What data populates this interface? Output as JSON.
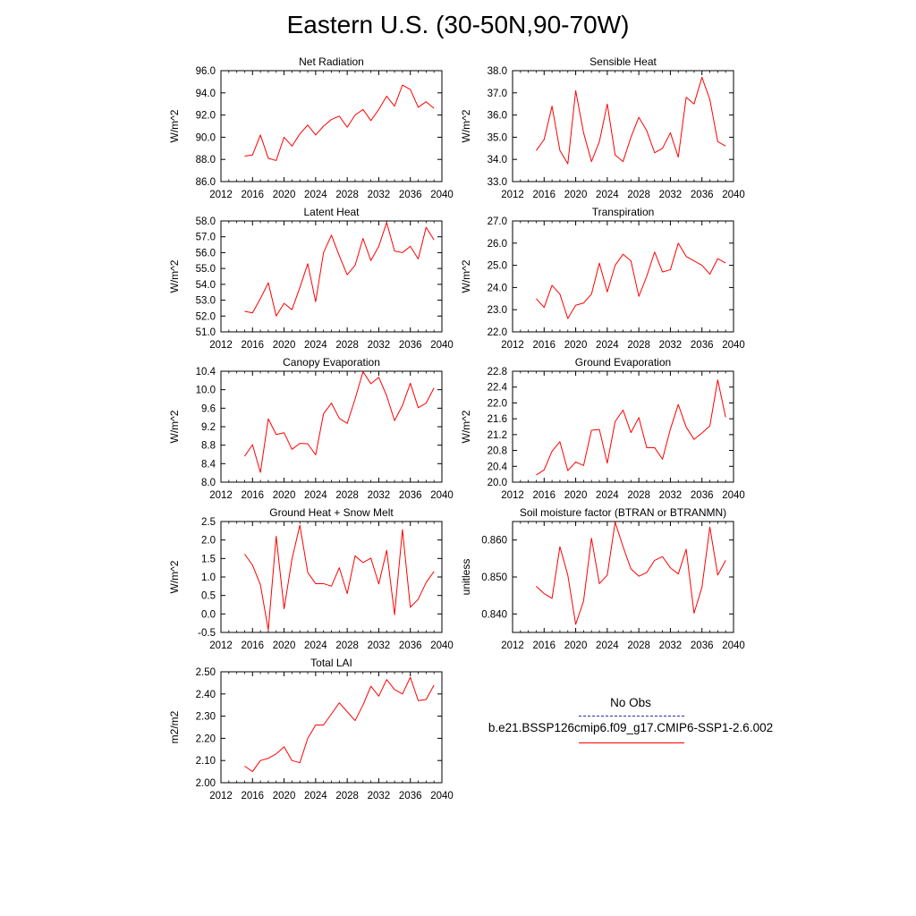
{
  "title": "Eastern U.S. (30-50N,90-70W)",
  "legend": {
    "obs_label": "No Obs",
    "obs_color": "#2c2c9c",
    "model_label": "b.e21.BSSP126cmip6.f09_g17.CMIP6-SSP1-2.6.002",
    "model_color": "#ff0000"
  },
  "chart_data": [
    {
      "type": "line",
      "title": "Net Radiation",
      "ylabel": "W/m^2",
      "xlim": [
        2012,
        2040
      ],
      "xticks": [
        2012,
        2016,
        2020,
        2024,
        2028,
        2032,
        2036,
        2040
      ],
      "ylim": [
        86.0,
        96.0
      ],
      "yticks": [
        86.0,
        88.0,
        90.0,
        92.0,
        94.0,
        96.0
      ],
      "ydecimals": 1,
      "x": [
        2015,
        2016,
        2017,
        2018,
        2019,
        2020,
        2021,
        2022,
        2023,
        2024,
        2025,
        2026,
        2027,
        2028,
        2029,
        2030,
        2031,
        2032,
        2033,
        2034,
        2035,
        2036,
        2037,
        2038,
        2039
      ],
      "series": [
        {
          "values": [
            88.3,
            88.4,
            90.2,
            88.1,
            87.9,
            90.0,
            89.2,
            90.3,
            91.1,
            90.2,
            91.0,
            91.6,
            91.9,
            90.9,
            92.0,
            92.5,
            91.5,
            92.5,
            93.7,
            92.8,
            94.7,
            94.3,
            92.7,
            93.2,
            92.6
          ],
          "color": "#ff0000"
        }
      ]
    },
    {
      "type": "line",
      "title": "Sensible Heat",
      "ylabel": "W/m^2",
      "xlim": [
        2012,
        2040
      ],
      "xticks": [
        2012,
        2016,
        2020,
        2024,
        2028,
        2032,
        2036,
        2040
      ],
      "ylim": [
        33.0,
        38.0
      ],
      "yticks": [
        33.0,
        34.0,
        35.0,
        36.0,
        37.0,
        38.0
      ],
      "ydecimals": 1,
      "x": [
        2015,
        2016,
        2017,
        2018,
        2019,
        2020,
        2021,
        2022,
        2023,
        2024,
        2025,
        2026,
        2027,
        2028,
        2029,
        2030,
        2031,
        2032,
        2033,
        2034,
        2035,
        2036,
        2037,
        2038,
        2039
      ],
      "series": [
        {
          "values": [
            34.4,
            34.9,
            36.4,
            34.4,
            33.8,
            37.1,
            35.2,
            33.9,
            34.8,
            36.5,
            34.2,
            33.9,
            35.0,
            35.9,
            35.3,
            34.3,
            34.5,
            35.2,
            34.1,
            36.8,
            36.5,
            37.7,
            36.7,
            34.8,
            34.6
          ],
          "color": "#ff0000"
        }
      ]
    },
    {
      "type": "line",
      "title": "Latent Heat",
      "ylabel": "W/m^2",
      "xlim": [
        2012,
        2040
      ],
      "xticks": [
        2012,
        2016,
        2020,
        2024,
        2028,
        2032,
        2036,
        2040
      ],
      "ylim": [
        51.0,
        58.0
      ],
      "yticks": [
        51.0,
        52.0,
        53.0,
        54.0,
        55.0,
        56.0,
        57.0,
        58.0
      ],
      "ydecimals": 1,
      "x": [
        2015,
        2016,
        2017,
        2018,
        2019,
        2020,
        2021,
        2022,
        2023,
        2024,
        2025,
        2026,
        2027,
        2028,
        2029,
        2030,
        2031,
        2032,
        2033,
        2034,
        2035,
        2036,
        2037,
        2038,
        2039
      ],
      "series": [
        {
          "values": [
            52.3,
            52.2,
            53.1,
            54.1,
            52.0,
            52.8,
            52.4,
            53.8,
            55.3,
            52.9,
            56.0,
            57.1,
            55.8,
            54.6,
            55.2,
            56.9,
            55.5,
            56.4,
            57.9,
            56.1,
            56.0,
            56.4,
            55.6,
            57.6,
            56.8
          ],
          "color": "#ff0000"
        }
      ]
    },
    {
      "type": "line",
      "title": "Transpiration",
      "ylabel": "W/m^2",
      "xlim": [
        2012,
        2040
      ],
      "xticks": [
        2012,
        2016,
        2020,
        2024,
        2028,
        2032,
        2036,
        2040
      ],
      "ylim": [
        22.0,
        27.0
      ],
      "yticks": [
        22.0,
        23.0,
        24.0,
        25.0,
        26.0,
        27.0
      ],
      "ydecimals": 1,
      "x": [
        2015,
        2016,
        2017,
        2018,
        2019,
        2020,
        2021,
        2022,
        2023,
        2024,
        2025,
        2026,
        2027,
        2028,
        2029,
        2030,
        2031,
        2032,
        2033,
        2034,
        2035,
        2036,
        2037,
        2038,
        2039
      ],
      "series": [
        {
          "values": [
            23.5,
            23.1,
            24.1,
            23.7,
            22.6,
            23.2,
            23.3,
            23.7,
            25.1,
            23.8,
            25.0,
            25.5,
            25.2,
            23.6,
            24.5,
            25.6,
            24.7,
            24.8,
            26.0,
            25.4,
            25.2,
            25.0,
            24.6,
            25.3,
            25.1
          ],
          "color": "#ff0000"
        }
      ]
    },
    {
      "type": "line",
      "title": "Canopy Evaporation",
      "ylabel": "W/m^2",
      "xlim": [
        2012,
        2040
      ],
      "xticks": [
        2012,
        2016,
        2020,
        2024,
        2028,
        2032,
        2036,
        2040
      ],
      "ylim": [
        8.0,
        10.4
      ],
      "yticks": [
        8.0,
        8.4,
        8.8,
        9.2,
        9.6,
        10.0,
        10.4
      ],
      "ydecimals": 1,
      "x": [
        2015,
        2016,
        2017,
        2018,
        2019,
        2020,
        2021,
        2022,
        2023,
        2024,
        2025,
        2026,
        2027,
        2028,
        2029,
        2030,
        2031,
        2032,
        2033,
        2034,
        2035,
        2036,
        2037,
        2038,
        2039
      ],
      "series": [
        {
          "values": [
            8.56,
            8.81,
            8.21,
            9.37,
            9.03,
            9.07,
            8.71,
            8.84,
            8.83,
            8.59,
            9.48,
            9.71,
            9.38,
            9.27,
            9.8,
            10.39,
            10.13,
            10.27,
            9.87,
            9.33,
            9.66,
            10.14,
            9.61,
            9.71,
            10.04
          ],
          "color": "#ff0000"
        }
      ]
    },
    {
      "type": "line",
      "title": "Ground Evaporation",
      "ylabel": "W/m^2",
      "xlim": [
        2012,
        2040
      ],
      "xticks": [
        2012,
        2016,
        2020,
        2024,
        2028,
        2032,
        2036,
        2040
      ],
      "ylim": [
        20.0,
        22.8
      ],
      "yticks": [
        20.0,
        20.4,
        20.8,
        21.2,
        21.6,
        22.0,
        22.4,
        22.8
      ],
      "ydecimals": 1,
      "x": [
        2015,
        2016,
        2017,
        2018,
        2019,
        2020,
        2021,
        2022,
        2023,
        2024,
        2025,
        2026,
        2027,
        2028,
        2029,
        2030,
        2031,
        2032,
        2033,
        2034,
        2035,
        2036,
        2037,
        2038,
        2039
      ],
      "series": [
        {
          "values": [
            20.18,
            20.31,
            20.78,
            21.02,
            20.29,
            20.51,
            20.42,
            21.31,
            21.33,
            20.48,
            21.53,
            21.82,
            21.25,
            21.63,
            20.87,
            20.87,
            20.58,
            21.34,
            21.96,
            21.39,
            21.08,
            21.24,
            21.42,
            22.58,
            21.64
          ],
          "color": "#ff0000"
        }
      ]
    },
    {
      "type": "line",
      "title": "Ground Heat + Snow Melt",
      "ylabel": "W/m^2",
      "xlim": [
        2012,
        2040
      ],
      "xticks": [
        2012,
        2016,
        2020,
        2024,
        2028,
        2032,
        2036,
        2040
      ],
      "ylim": [
        -0.5,
        2.5
      ],
      "yticks": [
        -0.5,
        0.0,
        0.5,
        1.0,
        1.5,
        2.0,
        2.5
      ],
      "ydecimals": 1,
      "x": [
        2015,
        2016,
        2017,
        2018,
        2019,
        2020,
        2021,
        2022,
        2023,
        2024,
        2025,
        2026,
        2027,
        2028,
        2029,
        2030,
        2031,
        2032,
        2033,
        2034,
        2035,
        2036,
        2037,
        2038,
        2039
      ],
      "series": [
        {
          "values": [
            1.62,
            1.32,
            0.79,
            -0.43,
            2.1,
            0.14,
            1.48,
            2.4,
            1.12,
            0.82,
            0.82,
            0.75,
            1.25,
            0.55,
            1.57,
            1.39,
            1.51,
            0.81,
            1.72,
            -0.02,
            2.28,
            0.18,
            0.4,
            0.85,
            1.15
          ],
          "color": "#ff0000"
        }
      ]
    },
    {
      "type": "line",
      "title": "Soil moisture factor (BTRAN or BTRANMN)",
      "ylabel": "unitless",
      "xlim": [
        2012,
        2040
      ],
      "xticks": [
        2012,
        2016,
        2020,
        2024,
        2028,
        2032,
        2036,
        2040
      ],
      "ylim": [
        0.835,
        0.865
      ],
      "yticks": [
        0.84,
        0.85,
        0.86
      ],
      "ydecimals": 3,
      "x": [
        2015,
        2016,
        2017,
        2018,
        2019,
        2020,
        2021,
        2022,
        2023,
        2024,
        2025,
        2026,
        2027,
        2028,
        2029,
        2030,
        2031,
        2032,
        2033,
        2034,
        2035,
        2036,
        2037,
        2038,
        2039
      ],
      "series": [
        {
          "values": [
            0.8475,
            0.8455,
            0.8442,
            0.8582,
            0.8505,
            0.8372,
            0.8435,
            0.8605,
            0.8482,
            0.8505,
            0.8648,
            0.8582,
            0.8522,
            0.8502,
            0.8512,
            0.8545,
            0.8555,
            0.8525,
            0.8508,
            0.8575,
            0.8402,
            0.8472,
            0.8635,
            0.8505,
            0.8545
          ],
          "color": "#ff0000"
        }
      ]
    },
    {
      "type": "line",
      "title": "Total LAI",
      "ylabel": "m2/m2",
      "xlim": [
        2012,
        2040
      ],
      "xticks": [
        2012,
        2016,
        2020,
        2024,
        2028,
        2032,
        2036,
        2040
      ],
      "ylim": [
        2.0,
        2.5
      ],
      "yticks": [
        2.0,
        2.1,
        2.2,
        2.3,
        2.4,
        2.5
      ],
      "ydecimals": 2,
      "x": [
        2015,
        2016,
        2017,
        2018,
        2019,
        2020,
        2021,
        2022,
        2023,
        2024,
        2025,
        2026,
        2027,
        2028,
        2029,
        2030,
        2031,
        2032,
        2033,
        2034,
        2035,
        2036,
        2037,
        2038,
        2039
      ],
      "series": [
        {
          "values": [
            2.075,
            2.05,
            2.1,
            2.11,
            2.13,
            2.162,
            2.1,
            2.09,
            2.2,
            2.26,
            2.26,
            2.31,
            2.36,
            2.32,
            2.28,
            2.35,
            2.435,
            2.39,
            2.465,
            2.42,
            2.4,
            2.475,
            2.37,
            2.375,
            2.44
          ],
          "color": "#ff0000"
        }
      ]
    }
  ]
}
